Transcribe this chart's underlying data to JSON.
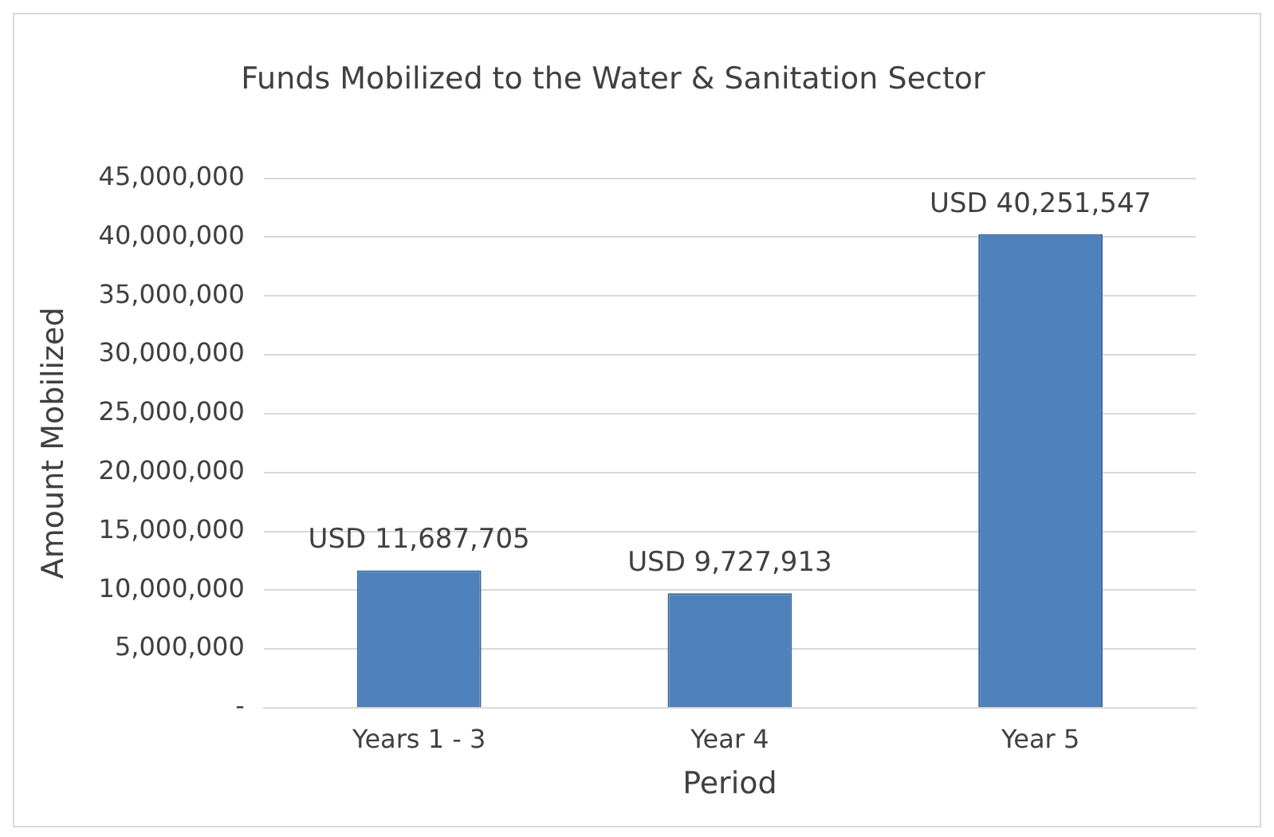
{
  "chart_data": {
    "type": "bar",
    "title": "Funds Mobilized to the Water & Sanitation Sector",
    "xlabel": "Period",
    "ylabel": "Amount Mobilized",
    "categories": [
      "Years 1 - 3",
      "Year 4",
      "Year 5"
    ],
    "values": [
      11687705,
      9727913,
      40251547
    ],
    "color": "#4f81bd",
    "value_labels": [
      "USD 11,687,705",
      "USD 9,727,913",
      "USD 40,251,547"
    ],
    "ylim": [
      0,
      45000000
    ],
    "yticks": [
      {
        "value": 0,
        "label": "-"
      },
      {
        "value": 5000000,
        "label": "5,000,000"
      },
      {
        "value": 10000000,
        "label": "10,000,000"
      },
      {
        "value": 15000000,
        "label": "15,000,000"
      },
      {
        "value": 20000000,
        "label": "20,000,000"
      },
      {
        "value": 25000000,
        "label": "25,000,000"
      },
      {
        "value": 30000000,
        "label": "30,000,000"
      },
      {
        "value": 35000000,
        "label": "35,000,000"
      },
      {
        "value": 40000000,
        "label": "40,000,000"
      },
      {
        "value": 45000000,
        "label": "45,000,000"
      }
    ],
    "grid": "y",
    "legend": false
  }
}
